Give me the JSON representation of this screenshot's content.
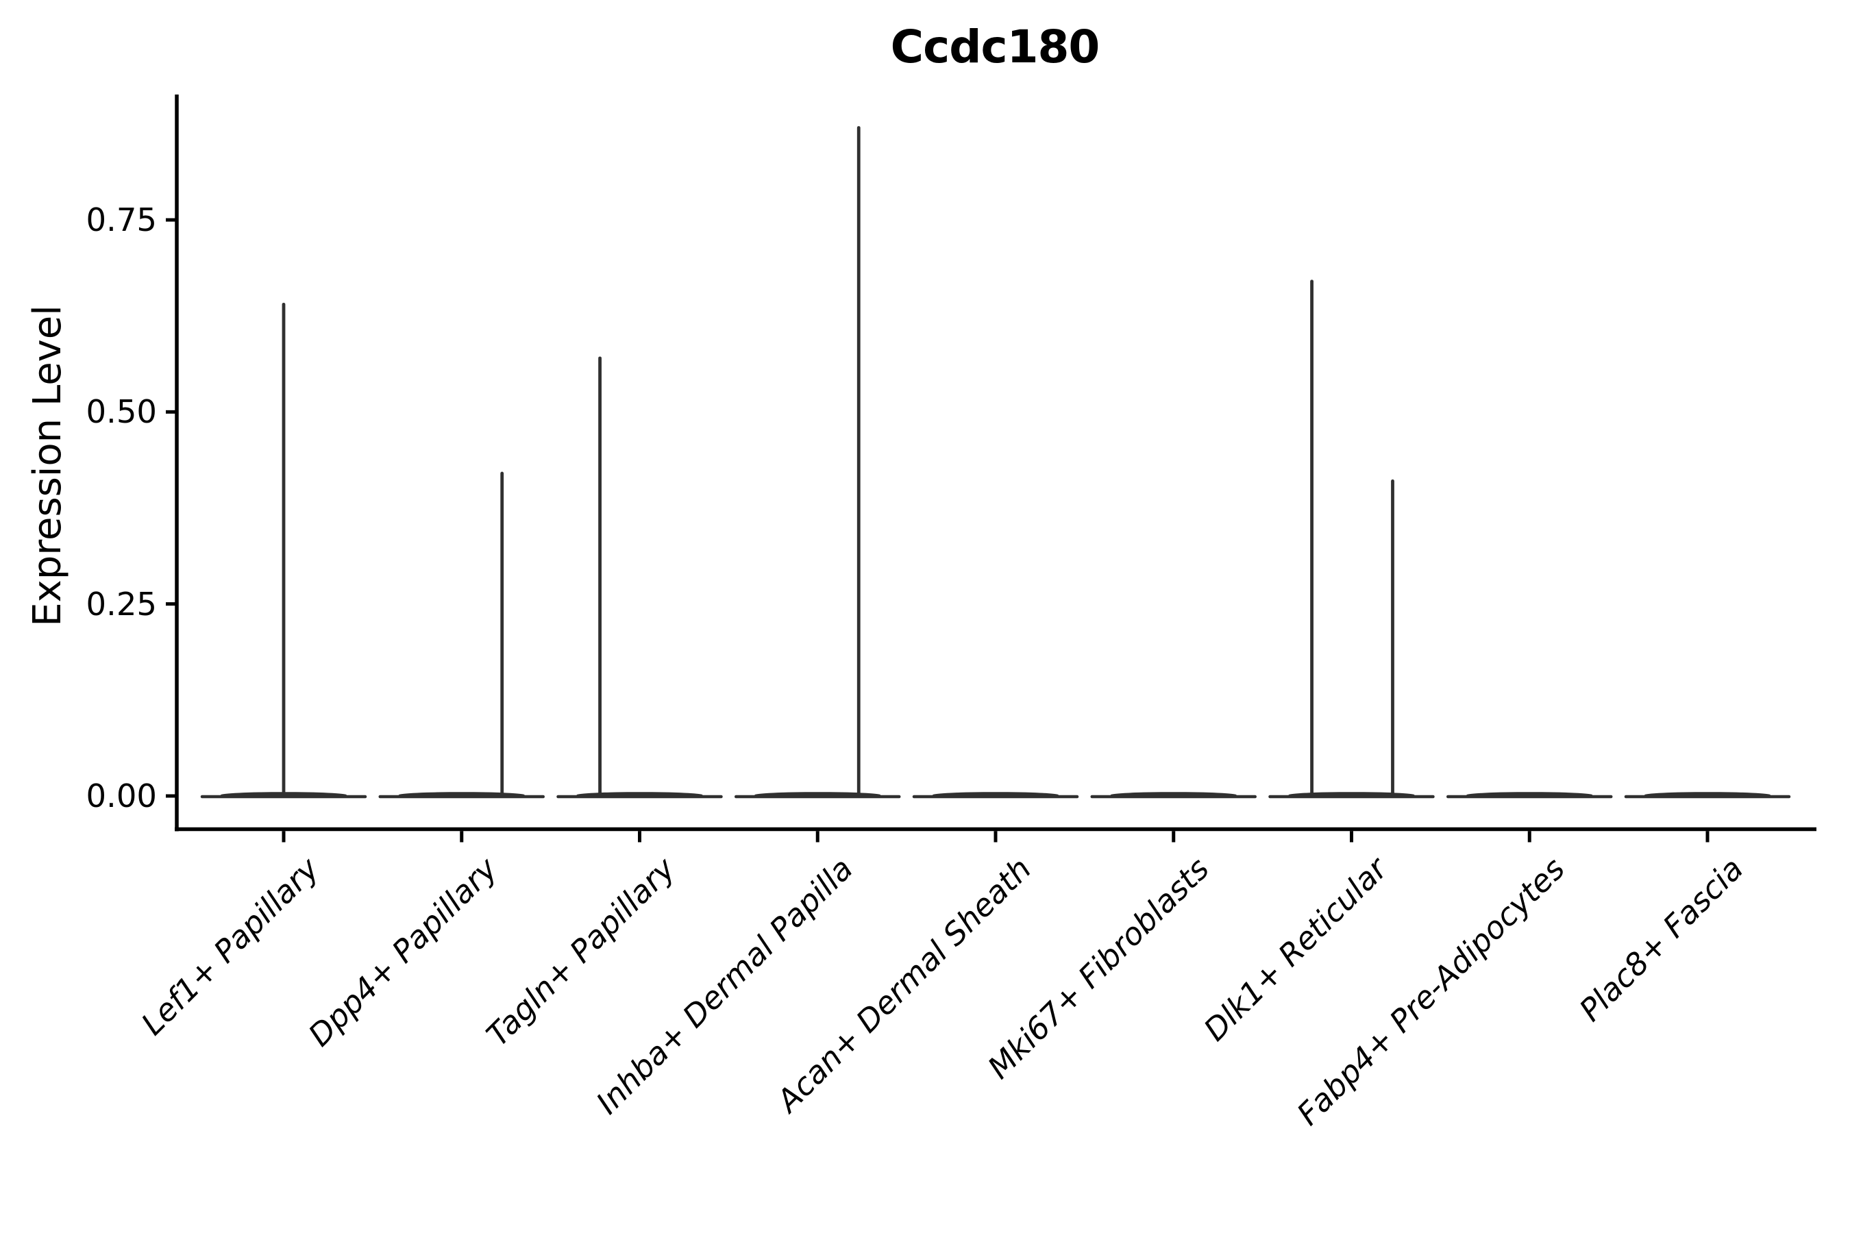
{
  "figure": {
    "title": "Ccdc180"
  },
  "y_axis": {
    "label": "Expression Level",
    "tick_labels": [
      "0.00",
      "0.25",
      "0.50",
      "0.75"
    ]
  },
  "x_axis": {
    "tick_labels": [
      "Lef1+ Papillary",
      "Dpp4+ Papillary",
      "Tagln+ Papillary",
      "Inhba+ Dermal Papilla",
      "Acan+ Dermal Sheath",
      "Mki67+ Fibroblasts",
      "Dlk1+ Reticular",
      "Fabp4+ Pre-Adipocytes",
      "Plac8+ Fascia"
    ]
  },
  "chart_data": {
    "type": "violin",
    "title": "Ccdc180",
    "xlabel": "",
    "ylabel": "Expression Level",
    "categories": [
      "Lef1+ Papillary",
      "Dpp4+ Papillary",
      "Tagln+ Papillary",
      "Inhba+ Dermal Papilla",
      "Acan+ Dermal Sheath",
      "Mki67+ Fibroblasts",
      "Dlk1+ Reticular",
      "Fabp4+ Pre-Adipocytes",
      "Plac8+ Fascia"
    ],
    "y_tick_values": [
      0.0,
      0.25,
      0.5,
      0.75
    ],
    "ylim": [
      -0.04,
      0.91
    ],
    "grid": false,
    "legend": "none",
    "description": "Flat violin bodies collapsed at expression 0 with thin vertical density tails up to the max expression value per cluster",
    "violins": [
      {
        "category": "Lef1+ Papillary",
        "body_value": 0,
        "body_width_frac": 0.92,
        "tails": [
          {
            "value": 0.64,
            "offset_frac": 0.0
          }
        ]
      },
      {
        "category": "Dpp4+ Papillary",
        "body_value": 0,
        "body_width_frac": 0.92,
        "tails": [
          {
            "value": 0.42,
            "offset_frac": 0.227
          }
        ]
      },
      {
        "category": "Tagln+ Papillary",
        "body_value": 0,
        "body_width_frac": 0.92,
        "tails": [
          {
            "value": 0.57,
            "offset_frac": -0.223
          }
        ]
      },
      {
        "category": "Inhba+ Dermal Papilla",
        "body_value": 0,
        "body_width_frac": 0.92,
        "tails": [
          {
            "value": 0.87,
            "offset_frac": 0.231
          }
        ]
      },
      {
        "category": "Acan+ Dermal Sheath",
        "body_value": 0,
        "body_width_frac": 0.92,
        "tails": []
      },
      {
        "category": "Mki67+ Fibroblasts",
        "body_value": 0,
        "body_width_frac": 0.92,
        "tails": []
      },
      {
        "category": "Dlk1+ Reticular",
        "body_value": 0,
        "body_width_frac": 0.92,
        "tails": [
          {
            "value": 0.67,
            "offset_frac": -0.223
          },
          {
            "value": 0.41,
            "offset_frac": 0.231
          }
        ]
      },
      {
        "category": "Fabp4+ Pre-Adipocytes",
        "body_value": 0,
        "body_width_frac": 0.92,
        "tails": []
      },
      {
        "category": "Plac8+ Fascia",
        "body_value": 0,
        "body_width_frac": 0.92,
        "tails": []
      }
    ]
  },
  "colors": {
    "violin": "#303030",
    "axis": "#000000",
    "text": "#000000",
    "background": "#ffffff"
  }
}
